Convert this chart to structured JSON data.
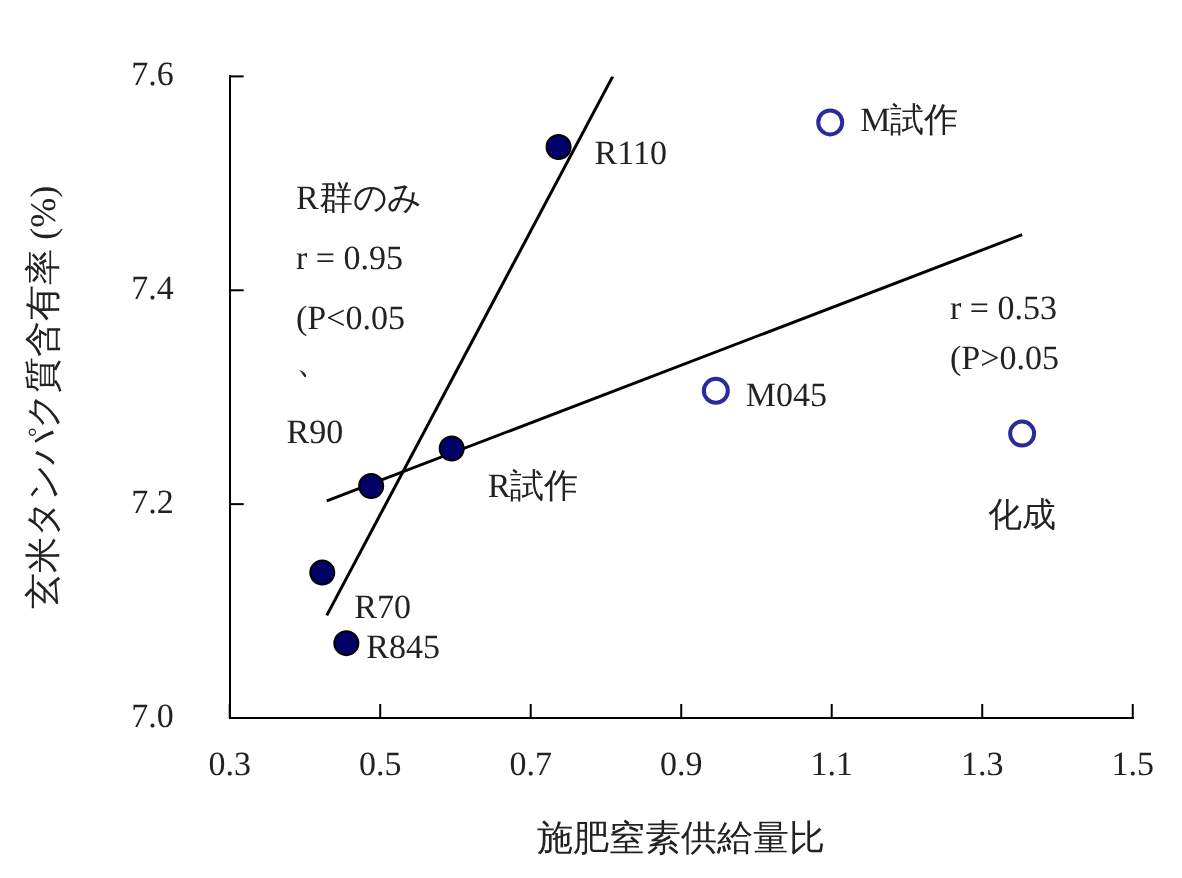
{
  "chart_data": {
    "type": "scatter",
    "xlabel": "施肥窒素供給量比",
    "ylabel": "玄米タンパク質含有率 (%)",
    "xlim": [
      0.3,
      1.5
    ],
    "xticks": [
      0.3,
      0.5,
      0.7,
      0.9,
      1.1,
      1.3,
      1.5
    ],
    "ylim": [
      7.0,
      7.6
    ],
    "yticks": [
      {
        "value": 7.0,
        "label": "7.0"
      },
      {
        "value": 7.2,
        "label": "7.2"
      },
      {
        "value": 7.4,
        "label": "7.4"
      },
      {
        "value": 7.6,
        "label": "7.6"
      }
    ],
    "grid": false,
    "legend": false,
    "series": [
      {
        "type": "scatter",
        "marker": "circle",
        "color": "#000066",
        "x": [
          0.737,
          0.488,
          0.595,
          0.423,
          0.455
        ],
        "values": [
          7.534,
          7.217,
          7.252,
          7.136,
          7.07
        ]
      },
      {
        "type": "scatter",
        "marker": "circle",
        "color": "#2a2a9a",
        "x": [
          1.098,
          0.946,
          1.353
        ],
        "values": [
          7.557,
          7.306,
          7.266
        ]
      },
      {
        "type": "line",
        "marker": "none",
        "color": "#000000",
        "x": [
          0.429,
          0.809
        ],
        "values": [
          7.096,
          7.6
        ]
      },
      {
        "type": "line",
        "marker": "none",
        "color": "#000000",
        "x": [
          0.429,
          1.353
        ],
        "values": [
          7.203,
          7.452
        ]
      }
    ],
    "annotations": [
      {
        "text": "R110",
        "x": 0.737,
        "y": 7.534
      },
      {
        "text": "R90",
        "x": 0.488,
        "y": 7.217
      },
      {
        "text": "R試作",
        "x": 0.595,
        "y": 7.252
      },
      {
        "text": "R70",
        "x": 0.423,
        "y": 7.136
      },
      {
        "text": "R845",
        "x": 0.455,
        "y": 7.07
      },
      {
        "text": "M試作",
        "x": 1.098,
        "y": 7.557
      },
      {
        "text": "M045",
        "x": 0.946,
        "y": 7.306
      },
      {
        "text": "化成",
        "x": 1.353,
        "y": 7.266
      },
      "R群のみ",
      "r = 0.95",
      "(P<0.05",
      "、",
      "r = 0.53",
      "(P>0.05"
    ]
  }
}
